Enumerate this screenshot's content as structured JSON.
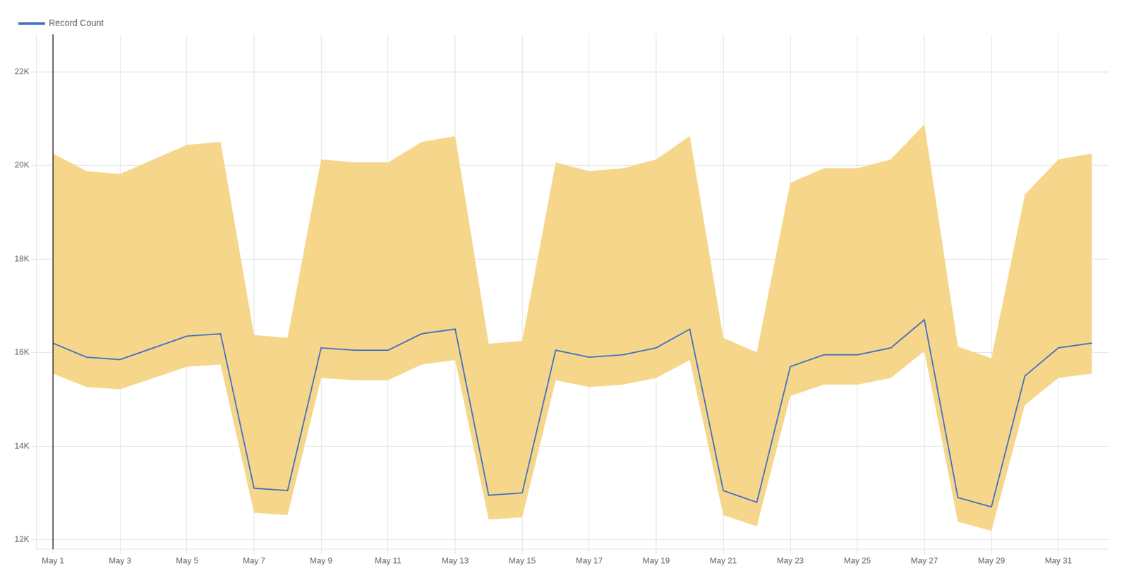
{
  "chart_data": {
    "type": "line",
    "categories": [
      "May 1",
      null,
      "May 3",
      null,
      "May 5",
      null,
      "May 7",
      null,
      "May 9",
      null,
      "May 11",
      null,
      "May 13",
      null,
      "May 15",
      null,
      "May 17",
      null,
      "May 19",
      null,
      "May 21",
      null,
      "May 23",
      null,
      "May 25",
      null,
      "May 27",
      null,
      "May 29",
      null,
      "May 31",
      null
    ],
    "series": [
      {
        "name": "Record Count",
        "color": "#4472C4",
        "values": [
          16200,
          15900,
          15850,
          16100,
          16350,
          16400,
          13100,
          13050,
          16100,
          16050,
          16050,
          16400,
          16500,
          12950,
          13000,
          16050,
          15900,
          15950,
          16100,
          16500,
          13050,
          12800,
          15700,
          15950,
          15950,
          16100,
          16700,
          12900,
          12700,
          15500,
          16100,
          16200
        ],
        "band": {
          "color": "#F5D68A",
          "lower": [
            15552,
            15264,
            15216,
            15456,
            15696,
            15744,
            12576,
            12528,
            15456,
            15408,
            15408,
            15744,
            15840,
            12432,
            12480,
            15408,
            15264,
            15312,
            15456,
            15840,
            12528,
            12288,
            15072,
            15312,
            15312,
            15456,
            16032,
            12384,
            12192,
            14880,
            15456,
            15552
          ],
          "upper": [
            20250,
            19875,
            19812.5,
            20125,
            20437.5,
            20500,
            16375,
            16312.5,
            20125,
            20062.5,
            20062.5,
            20500,
            20625,
            16187.5,
            16250,
            20062.5,
            19875,
            19937.5,
            20125,
            20625,
            16312.5,
            16000,
            19625,
            19937.5,
            19937.5,
            20125,
            20875,
            16125,
            15875,
            19375,
            20125,
            20250
          ]
        }
      }
    ],
    "vline": {
      "category": "May 1",
      "color": "#222222"
    },
    "ylim": [
      11800,
      22800
    ],
    "yticks": [
      {
        "value": 12000,
        "label": "12K"
      },
      {
        "value": 14000,
        "label": "14K"
      },
      {
        "value": 16000,
        "label": "16K"
      },
      {
        "value": 18000,
        "label": "18K"
      },
      {
        "value": 20000,
        "label": "20K"
      },
      {
        "value": 22000,
        "label": "22K"
      }
    ],
    "grid": true,
    "legend": "upper left"
  }
}
